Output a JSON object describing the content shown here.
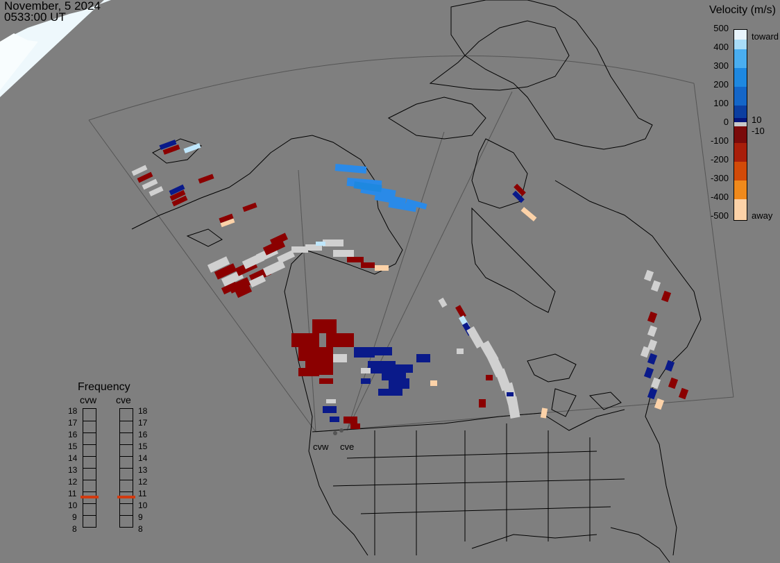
{
  "header": {
    "date": "November, 5 2024",
    "time": "0533:00 UT"
  },
  "legend": {
    "title": "Velocity (m/s)",
    "ticks": [
      "500",
      "400",
      "300",
      "200",
      "100",
      "10",
      "0",
      "-10",
      "-100",
      "-200",
      "-300",
      "-400",
      "-500"
    ],
    "toward_label": "toward",
    "away_label": "away",
    "colors": [
      "#e8f4fc",
      "#a8dcf8",
      "#4aaef0",
      "#1e88e0",
      "#1466c8",
      "#0c3ea0",
      "#06147a",
      "#c8c8c8",
      "#7a0a0a",
      "#a81e0a",
      "#d24a08",
      "#f08a1c",
      "#fcd2a8"
    ]
  },
  "frequency": {
    "title": "Frequency",
    "radars": [
      {
        "name": "cvw",
        "selected_mhz": 11
      },
      {
        "name": "cve",
        "selected_mhz": 11
      }
    ],
    "scale_top": "18",
    "scale": [
      "18",
      "17",
      "16",
      "15",
      "14",
      "13",
      "12",
      "11",
      "10",
      "9",
      "8"
    ],
    "marker_color": "#d23a10"
  },
  "map": {
    "radar_sites": [
      {
        "name": "cvw"
      },
      {
        "name": "cve"
      }
    ],
    "background_color": "#7f7f7f",
    "land_line_color": "#000000",
    "daylight_color": "#eef8fc"
  }
}
